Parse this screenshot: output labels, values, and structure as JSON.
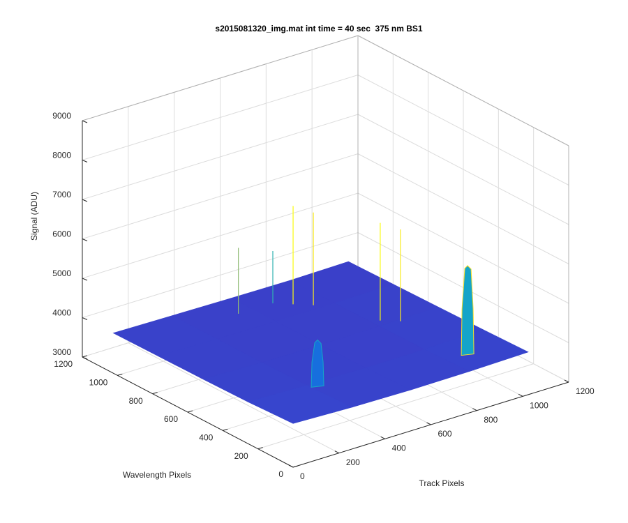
{
  "chart_data": {
    "type": "surface",
    "title": "s2015081320_img.mat int time = 40 sec  375 nm BS1",
    "x_label": "Track Pixels",
    "y_label": "Wavelength Pixels",
    "z_label": "Signal (ADU)",
    "x": [
      0,
      256,
      512,
      768,
      1024
    ],
    "y": [
      0,
      256,
      512,
      768,
      1024
    ],
    "z": [
      [
        4110,
        4060,
        4040,
        4050,
        4080
      ],
      [
        4060,
        4020,
        4000,
        4010,
        4050
      ],
      [
        4040,
        4000,
        3990,
        4000,
        4030
      ],
      [
        4030,
        4000,
        3990,
        3990,
        4010
      ],
      [
        4020,
        4000,
        3980,
        3970,
        3990
      ]
    ],
    "spikes": [
      {
        "x": 450,
        "y": 900,
        "z": 5660
      },
      {
        "x": 600,
        "y": 900,
        "z": 5310
      },
      {
        "x": 650,
        "y": 850,
        "z": 6480
      },
      {
        "x": 700,
        "y": 800,
        "z": 6340
      },
      {
        "x": 800,
        "y": 550,
        "z": 6480
      },
      {
        "x": 850,
        "y": 500,
        "z": 6340
      }
    ],
    "peaks": [
      {
        "x": 290,
        "y": 240,
        "z": 5150
      },
      {
        "x": 863,
        "y": 135,
        "z": 6250
      }
    ],
    "xlim": [
      0,
      1200
    ],
    "ylim": [
      0,
      1200
    ],
    "zlim": [
      3000,
      9000
    ],
    "xticks": [
      0,
      200,
      400,
      600,
      800,
      1000,
      1200
    ],
    "yticks": [
      0,
      200,
      400,
      600,
      800,
      1000,
      1200
    ],
    "zticks": [
      3000,
      4000,
      5000,
      6000,
      7000,
      8000,
      9000
    ],
    "grid": true,
    "colormap": [
      "#3b3fc8",
      "#2c55d8",
      "#1473df",
      "#0a92d8",
      "#1aaec0",
      "#6fbd86",
      "#c6bd5c",
      "#f9d52f",
      "#f9fb0e"
    ]
  }
}
